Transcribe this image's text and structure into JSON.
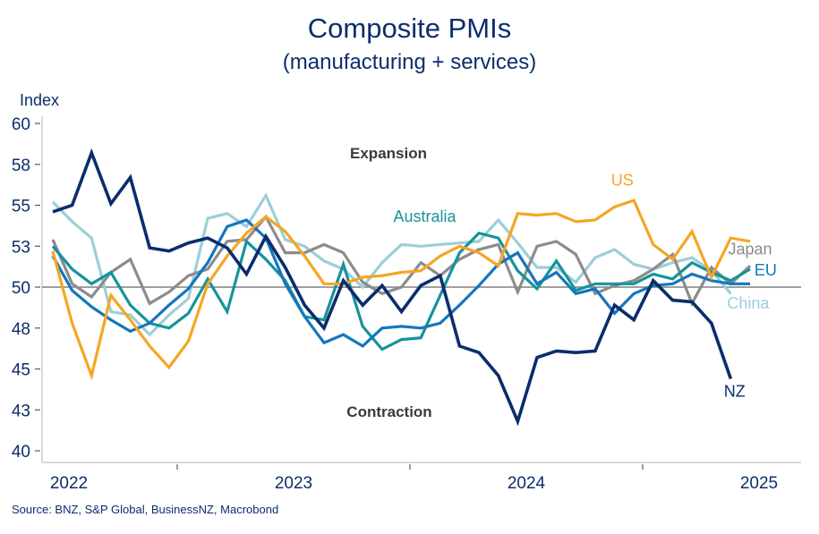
{
  "chart_data": {
    "type": "line",
    "title": "Composite PMIs",
    "subtitle": "(manufacturing + services)",
    "ylabel": "Index",
    "xlabel": "",
    "ylim": [
      40,
      60
    ],
    "yticks": [
      40,
      42.5,
      45,
      47.5,
      50,
      52.5,
      55,
      57.5,
      60
    ],
    "ytick_labels": [
      "40",
      "43",
      "45",
      "48",
      "50",
      "53",
      "55",
      "58",
      "60"
    ],
    "xtick_labels": [
      "2022",
      "2023",
      "2024",
      "2025"
    ],
    "reference_line": 50,
    "grid": false,
    "legend": "inline labels",
    "annotations": [
      "Expansion",
      "Contraction"
    ],
    "source": "Source: BNZ, S&P Global, BusinessNZ, Macrobond",
    "x": [
      "2022-06",
      "2022-07",
      "2022-08",
      "2022-09",
      "2022-10",
      "2022-11",
      "2022-12",
      "2023-01",
      "2023-02",
      "2023-03",
      "2023-04",
      "2023-05",
      "2023-06",
      "2023-07",
      "2023-08",
      "2023-09",
      "2023-10",
      "2023-11",
      "2023-12",
      "2024-01",
      "2024-02",
      "2024-03",
      "2024-04",
      "2024-05",
      "2024-06",
      "2024-07",
      "2024-08",
      "2024-09",
      "2024-10",
      "2024-11",
      "2024-12",
      "2025-01",
      "2025-02",
      "2025-03",
      "2025-04",
      "2025-05",
      "2025-06"
    ],
    "series": [
      {
        "name": "China",
        "color": "#9ccfd8",
        "values": [
          55.2,
          54.0,
          53.0,
          48.5,
          48.3,
          47.1,
          48.3,
          49.3,
          54.2,
          54.5,
          53.7,
          55.6,
          52.9,
          52.5,
          51.6,
          51.1,
          50.0,
          51.5,
          52.6,
          52.5,
          52.6,
          52.7,
          52.8,
          54.1,
          52.7,
          51.2,
          51.2,
          50.3,
          51.8,
          52.3,
          51.4,
          51.1,
          51.5,
          51.8,
          51.0,
          49.6
        ]
      },
      {
        "name": "Japan",
        "color": "#8c8c8c",
        "values": [
          52.9,
          50.2,
          49.4,
          50.9,
          51.7,
          49.0,
          49.7,
          50.7,
          51.1,
          52.8,
          52.9,
          54.3,
          52.1,
          52.1,
          52.6,
          52.1,
          50.3,
          49.6,
          50.0,
          51.5,
          50.7,
          51.7,
          52.3,
          52.6,
          49.7,
          52.5,
          52.8,
          52.0,
          49.6,
          50.1,
          50.4,
          51.1,
          52.0,
          49.0,
          51.2,
          50.2,
          51.3
        ]
      },
      {
        "name": "Australia",
        "color": "#17939b",
        "values": [
          52.5,
          51.1,
          50.2,
          50.9,
          48.9,
          47.8,
          47.5,
          48.4,
          50.5,
          48.5,
          52.8,
          51.7,
          50.4,
          48.2,
          48.0,
          51.4,
          47.6,
          46.2,
          46.8,
          46.9,
          49.5,
          52.1,
          53.3,
          53.0,
          51.0,
          49.9,
          51.6,
          49.8,
          50.2,
          50.2,
          50.2,
          50.8,
          50.5,
          51.5,
          50.9,
          50.4,
          51.1
        ]
      },
      {
        "name": "EU",
        "color": "#1377bd",
        "values": [
          51.9,
          49.8,
          48.8,
          48.0,
          47.3,
          47.8,
          48.9,
          49.9,
          51.5,
          53.7,
          54.1,
          53.0,
          50.2,
          48.2,
          46.6,
          47.1,
          46.4,
          47.5,
          47.6,
          47.5,
          47.8,
          48.9,
          50.1,
          51.4,
          52.1,
          50.2,
          50.9,
          49.6,
          49.9,
          48.4,
          49.6,
          50.1,
          50.2,
          50.8,
          50.4,
          50.2,
          50.2
        ]
      },
      {
        "name": "US",
        "color": "#f5a623",
        "values": [
          52.2,
          47.8,
          44.6,
          49.5,
          48.0,
          46.4,
          45.1,
          46.7,
          50.2,
          51.9,
          53.3,
          54.3,
          53.4,
          51.9,
          50.2,
          50.2,
          50.6,
          50.7,
          50.9,
          51.0,
          51.9,
          52.5,
          52.1,
          51.3,
          54.5,
          54.4,
          54.5,
          54.0,
          54.1,
          54.9,
          55.3,
          52.6,
          51.7,
          53.4,
          50.6,
          53.0,
          52.8
        ]
      },
      {
        "name": "NZ",
        "color": "#0a2d6e",
        "values": [
          54.6,
          55.0,
          58.2,
          55.1,
          56.7,
          52.4,
          52.2,
          52.7,
          53.0,
          52.4,
          50.8,
          53.1,
          51.2,
          48.9,
          47.5,
          50.4,
          48.9,
          50.1,
          48.5,
          50.1,
          50.7,
          46.4,
          46.0,
          44.6,
          41.8,
          45.7,
          46.1,
          46.0,
          46.1,
          48.9,
          48.0,
          50.4,
          49.2,
          49.1,
          47.8,
          44.4
        ]
      }
    ],
    "series_labels": [
      {
        "name": "US",
        "text": "US",
        "value": 56.2,
        "x_index": 29.4
      },
      {
        "name": "Australia",
        "text": "Australia",
        "value": 54.0,
        "x_index": 19.2
      },
      {
        "name": "Japan",
        "text": "Japan",
        "value": 52.0,
        "x_index": 36.0
      },
      {
        "name": "EU",
        "text": "EU",
        "value": 50.7,
        "x_index": 36.8
      },
      {
        "name": "China",
        "text": "China",
        "value": 48.7,
        "x_index": 35.9
      },
      {
        "name": "NZ",
        "text": "NZ",
        "value": 43.3,
        "x_index": 35.2
      }
    ]
  }
}
